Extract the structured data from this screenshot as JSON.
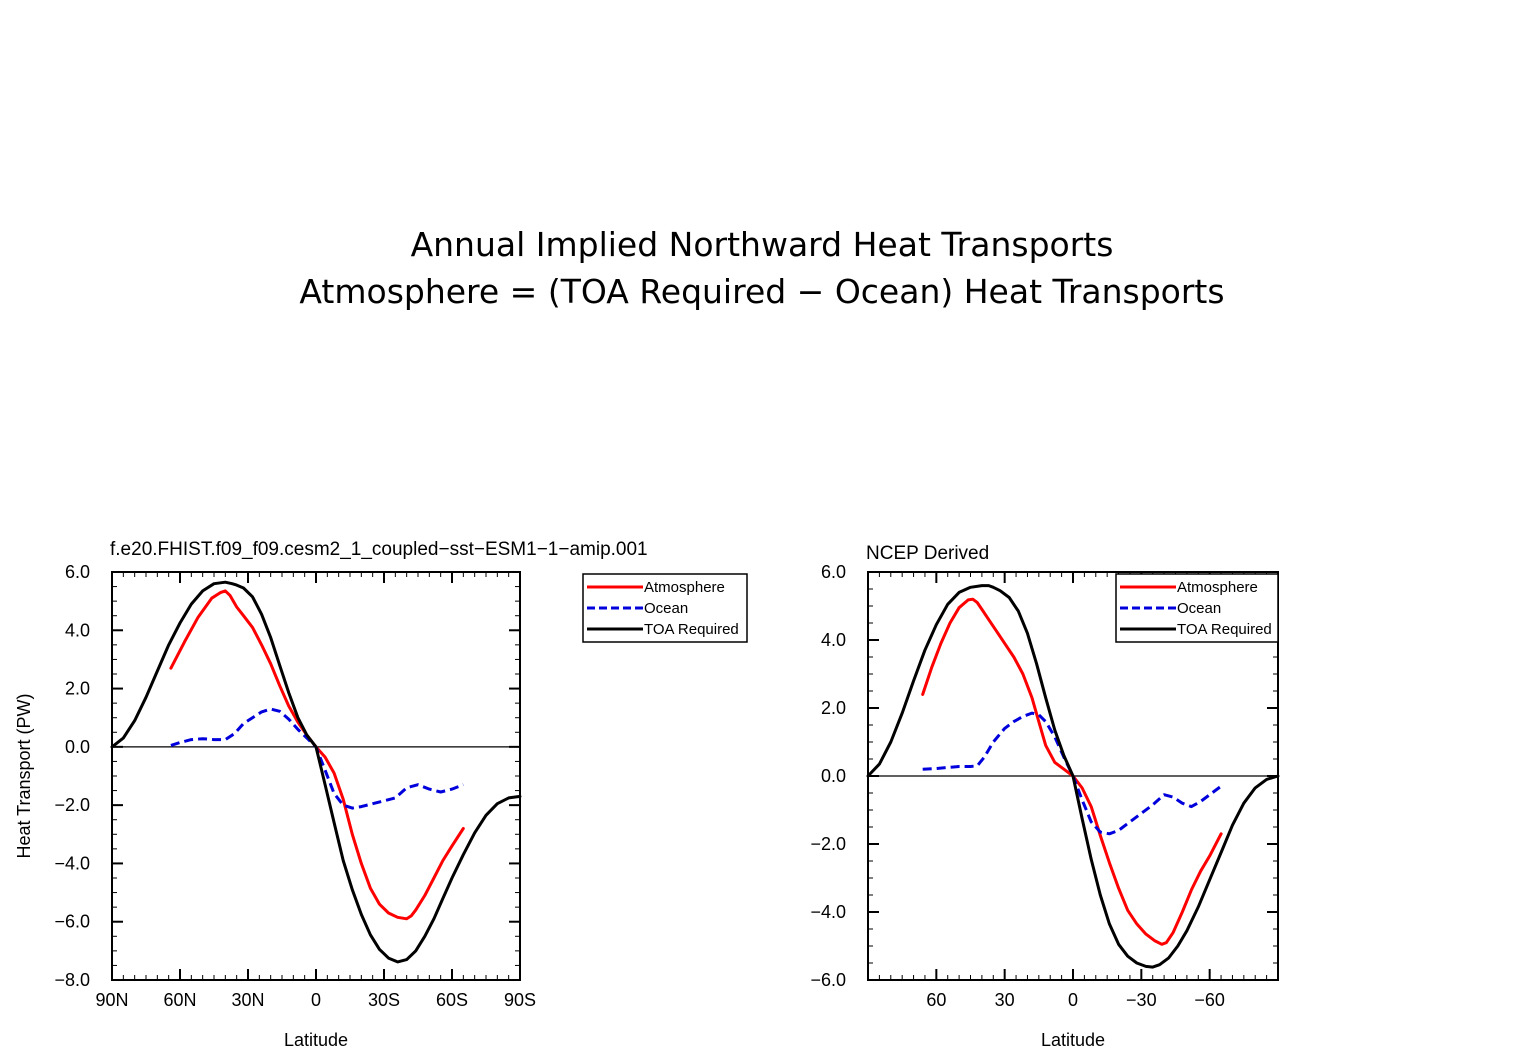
{
  "title": {
    "line1": "Annual Implied Northward Heat Transports",
    "line2": "Atmosphere = (TOA Required − Ocean) Heat Transports"
  },
  "colors": {
    "atmosphere": "#ff0000",
    "ocean": "#0000dd",
    "toa": "#000000"
  },
  "chart_data": [
    {
      "type": "line",
      "title": "f.e20.FHIST.f09_f09.cesm2_1_coupled−sst−ESM1−1−amip.001",
      "xlabel": "Latitude",
      "ylabel": "Heat Transport (PW)",
      "xlim": [
        90,
        -90
      ],
      "ylim": [
        -8,
        6
      ],
      "xticks": [
        90,
        60,
        30,
        0,
        -30,
        -60,
        -90
      ],
      "xtick_labels": [
        "90N",
        "60N",
        "30N",
        "0",
        "30S",
        "60S",
        "90S"
      ],
      "yticks": [
        -8,
        -6,
        -4,
        -2,
        0,
        2,
        4,
        6
      ],
      "ytick_labels": [
        "−8.0",
        "−6.0",
        "−4.0",
        "−2.0",
        "0.0",
        "2.0",
        "4.0",
        "6.0"
      ],
      "legend": [
        "Atmosphere",
        "Ocean",
        "TOA Required"
      ],
      "legend_position": "outside-right",
      "series": [
        {
          "name": "Atmosphere",
          "style": "solid",
          "x": [
            64,
            58,
            52,
            46,
            42,
            40,
            38,
            35,
            32,
            28,
            24,
            20,
            16,
            12,
            8,
            4,
            0,
            -4,
            -8,
            -12,
            -16,
            -20,
            -24,
            -28,
            -32,
            -36,
            -40,
            -42,
            -44,
            -48,
            -52,
            -56,
            -60,
            -65
          ],
          "y": [
            2.7,
            3.6,
            4.45,
            5.1,
            5.3,
            5.35,
            5.2,
            4.8,
            4.5,
            4.1,
            3.5,
            2.85,
            2.1,
            1.4,
            0.85,
            0.4,
            0.0,
            -0.35,
            -0.9,
            -1.8,
            -3.0,
            -4.0,
            -4.85,
            -5.4,
            -5.7,
            -5.85,
            -5.9,
            -5.8,
            -5.6,
            -5.1,
            -4.5,
            -3.9,
            -3.4,
            -2.8
          ]
        },
        {
          "name": "Ocean",
          "style": "dashed",
          "x": [
            64,
            60,
            55,
            50,
            45,
            40,
            36,
            32,
            28,
            24,
            20,
            16,
            12,
            8,
            4,
            0,
            -4,
            -8,
            -12,
            -16,
            -20,
            -25,
            -30,
            -35,
            -40,
            -45,
            -50,
            -55,
            -60,
            -65
          ],
          "y": [
            0.05,
            0.15,
            0.25,
            0.28,
            0.25,
            0.25,
            0.45,
            0.8,
            1.0,
            1.2,
            1.3,
            1.22,
            0.95,
            0.6,
            0.3,
            0.0,
            -0.8,
            -1.6,
            -2.0,
            -2.1,
            -2.05,
            -1.95,
            -1.85,
            -1.75,
            -1.4,
            -1.3,
            -1.45,
            -1.55,
            -1.45,
            -1.3
          ]
        },
        {
          "name": "TOA Required",
          "style": "solid",
          "x": [
            90,
            85,
            80,
            75,
            70,
            65,
            60,
            55,
            50,
            45,
            40,
            37,
            35,
            32,
            28,
            24,
            20,
            16,
            12,
            8,
            4,
            0,
            -4,
            -8,
            -12,
            -16,
            -20,
            -24,
            -28,
            -32,
            -36,
            -40,
            -44,
            -48,
            -52,
            -56,
            -60,
            -65,
            -70,
            -75,
            -80,
            -85,
            -90
          ],
          "y": [
            0.0,
            0.3,
            0.9,
            1.7,
            2.6,
            3.5,
            4.25,
            4.9,
            5.35,
            5.6,
            5.65,
            5.6,
            5.55,
            5.45,
            5.15,
            4.55,
            3.75,
            2.8,
            1.85,
            1.0,
            0.4,
            0.0,
            -1.3,
            -2.6,
            -3.9,
            -4.9,
            -5.75,
            -6.45,
            -6.95,
            -7.25,
            -7.38,
            -7.3,
            -7.0,
            -6.5,
            -5.9,
            -5.2,
            -4.5,
            -3.7,
            -2.95,
            -2.35,
            -1.95,
            -1.75,
            -1.7
          ]
        }
      ]
    },
    {
      "type": "line",
      "title": "NCEP Derived",
      "xlabel": "Latitude",
      "ylabel": "",
      "xlim": [
        90,
        -90
      ],
      "ylim": [
        -6,
        6
      ],
      "xticks": [
        60,
        30,
        0,
        -30,
        -60
      ],
      "xtick_labels": [
        "60",
        "30",
        "0",
        "−30",
        "−60"
      ],
      "yticks": [
        -6,
        -4,
        -2,
        0,
        2,
        4,
        6
      ],
      "ytick_labels": [
        "−6.0",
        "−4.0",
        "−2.0",
        "0.0",
        "2.0",
        "4.0",
        "6.0"
      ],
      "legend": [
        "Atmosphere",
        "Ocean",
        "TOA Required"
      ],
      "legend_position": "top-right",
      "series": [
        {
          "name": "Atmosphere",
          "style": "solid",
          "x": [
            66,
            62,
            58,
            54,
            50,
            46,
            44,
            42,
            40,
            37,
            34,
            30,
            26,
            22,
            18,
            15,
            12,
            8,
            4,
            0,
            -4,
            -8,
            -12,
            -16,
            -20,
            -24,
            -28,
            -32,
            -36,
            -39,
            -41,
            -44,
            -48,
            -52,
            -56,
            -60,
            -65
          ],
          "y": [
            2.4,
            3.2,
            3.9,
            4.5,
            4.95,
            5.18,
            5.2,
            5.1,
            4.9,
            4.6,
            4.3,
            3.9,
            3.5,
            3.0,
            2.3,
            1.6,
            0.9,
            0.4,
            0.2,
            0.0,
            -0.35,
            -0.9,
            -1.75,
            -2.55,
            -3.3,
            -3.95,
            -4.35,
            -4.65,
            -4.85,
            -4.95,
            -4.9,
            -4.6,
            -4.0,
            -3.35,
            -2.8,
            -2.35,
            -1.7
          ]
        },
        {
          "name": "Ocean",
          "style": "dashed",
          "x": [
            66,
            60,
            55,
            50,
            45,
            42,
            39,
            35,
            30,
            26,
            22,
            18,
            15,
            12,
            8,
            4,
            0,
            -4,
            -8,
            -12,
            -16,
            -20,
            -25,
            -30,
            -35,
            -40,
            -44,
            -48,
            -52,
            -56,
            -60,
            -65
          ],
          "y": [
            0.2,
            0.22,
            0.25,
            0.28,
            0.28,
            0.3,
            0.55,
            1.0,
            1.4,
            1.6,
            1.75,
            1.85,
            1.8,
            1.6,
            1.15,
            0.55,
            0.0,
            -0.7,
            -1.35,
            -1.65,
            -1.7,
            -1.6,
            -1.35,
            -1.1,
            -0.85,
            -0.55,
            -0.62,
            -0.8,
            -0.9,
            -0.75,
            -0.55,
            -0.3
          ]
        },
        {
          "name": "TOA Required",
          "style": "solid",
          "x": [
            90,
            85,
            80,
            75,
            70,
            65,
            60,
            55,
            50,
            45,
            40,
            37,
            35,
            32,
            28,
            24,
            20,
            16,
            12,
            8,
            4,
            0,
            -4,
            -8,
            -12,
            -16,
            -20,
            -24,
            -28,
            -32,
            -35,
            -38,
            -42,
            -46,
            -50,
            -55,
            -60,
            -65,
            -70,
            -75,
            -80,
            -85,
            -90
          ],
          "y": [
            0.0,
            0.35,
            1.0,
            1.85,
            2.8,
            3.7,
            4.45,
            5.05,
            5.4,
            5.55,
            5.6,
            5.6,
            5.55,
            5.45,
            5.25,
            4.85,
            4.2,
            3.3,
            2.3,
            1.35,
            0.6,
            0.0,
            -1.25,
            -2.45,
            -3.5,
            -4.35,
            -4.95,
            -5.3,
            -5.5,
            -5.6,
            -5.62,
            -5.55,
            -5.35,
            -5.0,
            -4.55,
            -3.85,
            -3.05,
            -2.25,
            -1.45,
            -0.8,
            -0.35,
            -0.1,
            0.0
          ]
        }
      ]
    }
  ]
}
